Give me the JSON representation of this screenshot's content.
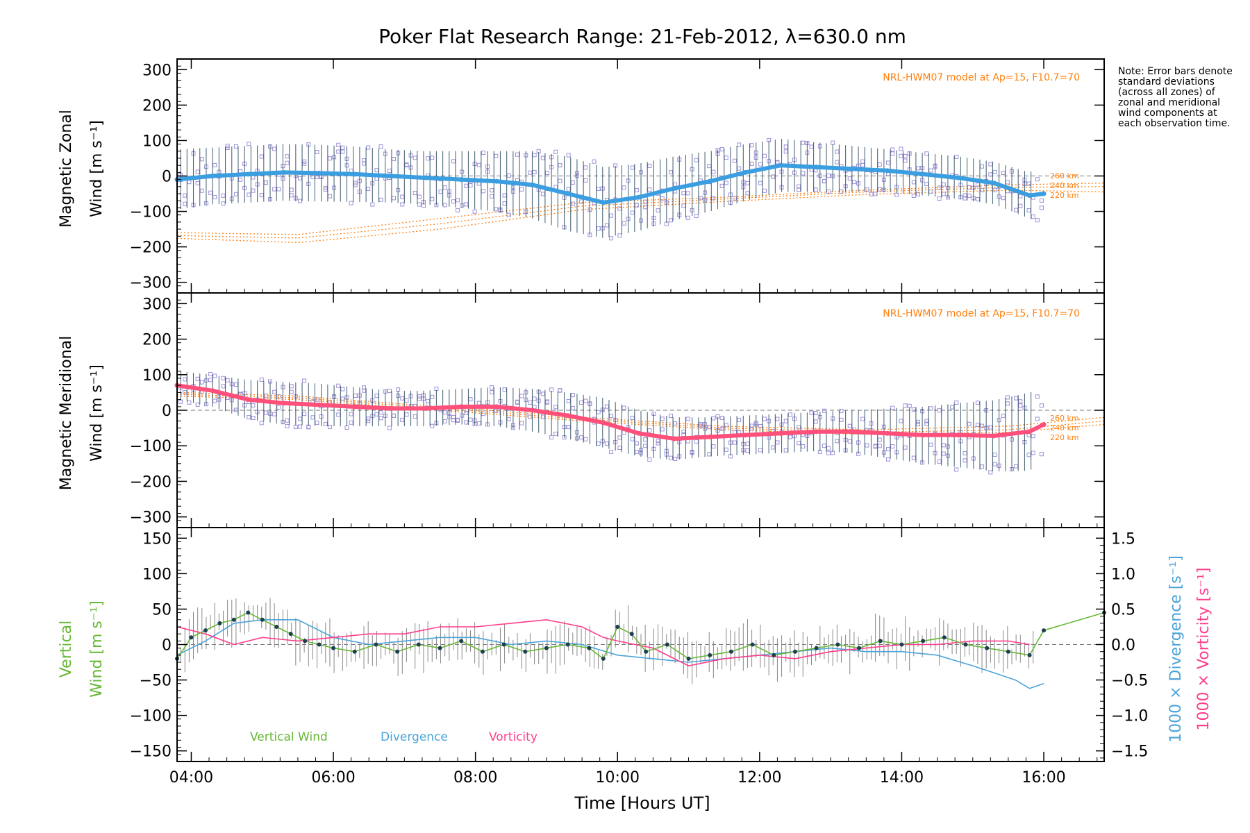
{
  "title": "Poker Flat Research Range: 21-Feb-2012, λ=630.0 nm",
  "note": "Note: Error bars denote standard deviations (across all zones) of zonal and meridional wind components at each observation time.",
  "xlabel": "Time [Hours UT]",
  "model_label": "NRL-HWM07 model at Ap=15, F10.7=70",
  "altitude_labels": [
    "260 km",
    "240 km",
    "220 km"
  ],
  "legend": {
    "vertical": "Vertical Wind",
    "divergence": "Divergence",
    "vorticity": "Vorticity"
  },
  "colors": {
    "zonal": "#3a9ee0",
    "meridional": "#ff4f7b",
    "vertical": "#66b833",
    "divergence": "#4ba3d9",
    "vorticity": "#ff3d8b",
    "model": "#ff7f0e",
    "scatter": "#9c90d8",
    "errorbar": "#2e4f63"
  },
  "chart_data": [
    {
      "type": "line",
      "panel": "zonal",
      "ylabel_line1": "Magnetic Zonal",
      "ylabel_line2": "Wind [m s⁻¹]",
      "xlim": [
        3.8,
        16.85
      ],
      "ylim": [
        -330,
        330
      ],
      "yticks": [
        -300,
        -200,
        -100,
        0,
        100,
        200,
        300
      ],
      "xticks": [
        4,
        6,
        8,
        10,
        12,
        14,
        16
      ],
      "xtick_labels": [
        "04:00",
        "06:00",
        "08:00",
        "10:00",
        "12:00",
        "14:00",
        "16:00"
      ],
      "series": [
        {
          "name": "Zonal wind",
          "x": [
            3.8,
            4.3,
            4.8,
            5.3,
            5.8,
            6.3,
            6.8,
            7.3,
            7.8,
            8.3,
            8.8,
            9.3,
            9.8,
            10.3,
            10.8,
            11.3,
            11.8,
            12.3,
            12.8,
            13.3,
            13.8,
            14.3,
            14.8,
            15.3,
            15.8,
            16.0
          ],
          "y": [
            -10,
            0,
            5,
            10,
            8,
            5,
            0,
            -5,
            -10,
            -15,
            -25,
            -50,
            -75,
            -60,
            -35,
            -15,
            10,
            30,
            25,
            20,
            15,
            5,
            -5,
            -20,
            -55,
            -50
          ],
          "spread": [
            85,
            80,
            80,
            80,
            80,
            78,
            75,
            75,
            80,
            85,
            95,
            105,
            100,
            95,
            90,
            85,
            80,
            75,
            70,
            65,
            60,
            60,
            60,
            60,
            65,
            85
          ]
        },
        {
          "name": "Model 260 km",
          "x": [
            3.8,
            5.5,
            7.5,
            9.5,
            11.5,
            13.5,
            15.5,
            16.85
          ],
          "y": [
            -160,
            -165,
            -120,
            -75,
            -60,
            -40,
            -25,
            -20
          ]
        },
        {
          "name": "Model 240 km",
          "x": [
            3.8,
            5.5,
            7.5,
            9.5,
            11.5,
            13.5,
            15.5,
            16.85
          ],
          "y": [
            -168,
            -175,
            -135,
            -85,
            -65,
            -45,
            -32,
            -30
          ]
        },
        {
          "name": "Model 220 km",
          "x": [
            3.8,
            5.5,
            7.5,
            9.5,
            11.5,
            13.5,
            15.5,
            16.85
          ],
          "y": [
            -176,
            -188,
            -150,
            -95,
            -72,
            -52,
            -40,
            -45
          ]
        }
      ]
    },
    {
      "type": "line",
      "panel": "meridional",
      "ylabel_line1": "Magnetic Meridional",
      "ylabel_line2": "Wind [m s⁻¹]",
      "xlim": [
        3.8,
        16.85
      ],
      "ylim": [
        -330,
        330
      ],
      "yticks": [
        -300,
        -200,
        -100,
        0,
        100,
        200,
        300
      ],
      "series": [
        {
          "name": "Meridional wind",
          "x": [
            3.8,
            4.3,
            4.8,
            5.3,
            5.8,
            6.3,
            6.8,
            7.3,
            7.8,
            8.3,
            8.8,
            9.3,
            9.8,
            10.3,
            10.8,
            11.3,
            11.8,
            12.3,
            12.8,
            13.3,
            13.8,
            14.3,
            14.8,
            15.3,
            15.8,
            16.0
          ],
          "y": [
            70,
            55,
            30,
            20,
            15,
            10,
            5,
            5,
            10,
            10,
            0,
            -15,
            -35,
            -65,
            -80,
            -75,
            -70,
            -65,
            -60,
            -60,
            -65,
            -70,
            -70,
            -72,
            -60,
            -40
          ],
          "spread": [
            40,
            45,
            55,
            60,
            60,
            55,
            50,
            50,
            50,
            55,
            60,
            65,
            70,
            65,
            60,
            55,
            55,
            55,
            55,
            60,
            70,
            80,
            90,
            100,
            110,
            100
          ]
        },
        {
          "name": "Model 260 km",
          "x": [
            3.8,
            5.5,
            7.5,
            9.5,
            11.5,
            13.5,
            15.5,
            16.85
          ],
          "y": [
            50,
            40,
            10,
            -20,
            -45,
            -55,
            -45,
            -20
          ]
        },
        {
          "name": "Model 240 km",
          "x": [
            3.8,
            5.5,
            7.5,
            9.5,
            11.5,
            13.5,
            15.5,
            16.85
          ],
          "y": [
            45,
            35,
            5,
            -25,
            -50,
            -62,
            -55,
            -30
          ]
        },
        {
          "name": "Model 220 km",
          "x": [
            3.8,
            5.5,
            7.5,
            9.5,
            11.5,
            13.5,
            15.5,
            16.85
          ],
          "y": [
            40,
            30,
            0,
            -30,
            -55,
            -68,
            -62,
            -40
          ]
        }
      ]
    },
    {
      "type": "line",
      "panel": "vertical",
      "ylabel_left_line1": "Vertical",
      "ylabel_left_line2": "Wind [m s⁻¹]",
      "ylabel_right_div": "1000 × Divergence [s⁻¹]",
      "ylabel_right_vort": "1000 × Vorticity [s⁻¹]",
      "xlim": [
        3.8,
        16.85
      ],
      "ylim": [
        -165,
        165
      ],
      "yticks": [
        -150,
        -100,
        -50,
        0,
        50,
        100,
        150
      ],
      "y2lim": [
        -1.65,
        1.65
      ],
      "y2ticks": [
        -1.5,
        -1.0,
        -0.5,
        0.0,
        0.5,
        1.0,
        1.5
      ],
      "y2tick_labels": [
        "−1.5",
        "−1.0",
        "−0.5",
        "0.0",
        "0.5",
        "1.0",
        "1.5"
      ],
      "series": [
        {
          "name": "Vertical Wind",
          "x": [
            3.8,
            4.0,
            4.2,
            4.4,
            4.6,
            4.8,
            5.0,
            5.2,
            5.4,
            5.6,
            5.8,
            6.0,
            6.3,
            6.6,
            6.9,
            7.2,
            7.5,
            7.8,
            8.1,
            8.4,
            8.7,
            9.0,
            9.3,
            9.6,
            9.8,
            10.0,
            10.2,
            10.4,
            10.7,
            11.0,
            11.3,
            11.6,
            11.9,
            12.2,
            12.5,
            12.8,
            13.1,
            13.4,
            13.7,
            14.0,
            14.3,
            14.6,
            14.9,
            15.2,
            15.5,
            15.8,
            16.0,
            16.85
          ],
          "y": [
            -20,
            10,
            20,
            30,
            35,
            45,
            35,
            25,
            15,
            5,
            0,
            -5,
            -10,
            0,
            -10,
            0,
            -5,
            5,
            -10,
            0,
            -10,
            -5,
            0,
            -5,
            -20,
            25,
            15,
            -10,
            0,
            -20,
            -15,
            -10,
            0,
            -15,
            -10,
            -5,
            0,
            -5,
            5,
            0,
            5,
            10,
            0,
            -5,
            -10,
            -15,
            20,
            45
          ]
        },
        {
          "name": "Divergence",
          "x": [
            3.8,
            4.2,
            4.6,
            5.0,
            5.5,
            6.0,
            6.5,
            7.0,
            7.5,
            8.0,
            8.5,
            9.0,
            9.5,
            10.0,
            10.5,
            11.0,
            11.5,
            12.0,
            12.5,
            13.0,
            13.5,
            14.0,
            14.5,
            15.0,
            15.3,
            15.6,
            15.8,
            16.0
          ],
          "y": [
            -0.15,
            0.05,
            0.3,
            0.35,
            0.35,
            0.1,
            0.0,
            0.05,
            0.1,
            0.1,
            0.0,
            0.05,
            0.0,
            -0.15,
            -0.2,
            -0.25,
            -0.2,
            -0.15,
            -0.1,
            -0.05,
            -0.1,
            -0.1,
            -0.15,
            -0.3,
            -0.4,
            -0.5,
            -0.62,
            -0.55
          ]
        },
        {
          "name": "Vorticity",
          "x": [
            3.8,
            4.2,
            4.6,
            5.0,
            5.5,
            6.0,
            6.5,
            7.0,
            7.5,
            8.0,
            8.5,
            9.0,
            9.5,
            9.8,
            10.0,
            10.5,
            11.0,
            11.5,
            12.0,
            12.5,
            13.0,
            13.5,
            14.0,
            14.5,
            15.0,
            15.5,
            15.8
          ],
          "y": [
            0.25,
            0.15,
            0.0,
            0.1,
            0.05,
            0.1,
            0.15,
            0.15,
            0.25,
            0.25,
            0.3,
            0.35,
            0.25,
            0.1,
            0.05,
            -0.05,
            -0.3,
            -0.2,
            -0.15,
            -0.2,
            -0.1,
            -0.05,
            0.0,
            0.0,
            0.05,
            0.05,
            0.0
          ]
        }
      ]
    }
  ]
}
